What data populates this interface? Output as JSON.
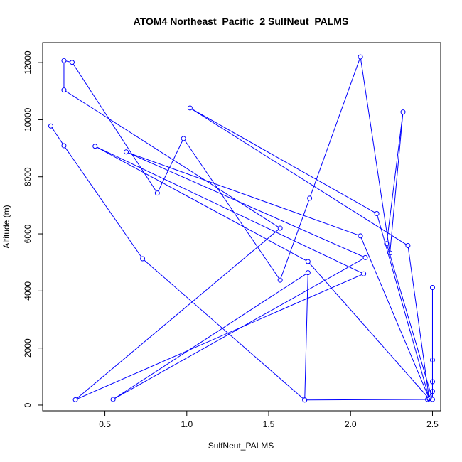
{
  "chart_data": {
    "type": "scatter",
    "title": "ATOM4 Northeast_Pacific_2 SulfNeut_PALMS",
    "xlabel": "SulfNeut_PALMS",
    "ylabel": "Altitude (m)",
    "xlim": [
      0.12,
      2.55
    ],
    "ylim": [
      -200,
      12700
    ],
    "x_ticks": [
      0.5,
      1.0,
      1.5,
      2.0,
      2.5
    ],
    "x_tick_labels": [
      "0.5",
      "1.0",
      "1.5",
      "2.0",
      "2.5"
    ],
    "y_ticks": [
      0,
      2000,
      4000,
      6000,
      8000,
      10000,
      12000
    ],
    "y_tick_labels": [
      "0",
      "2000",
      "4000",
      "6000",
      "8000",
      "10000",
      "12000"
    ],
    "grid": false,
    "legend": "none",
    "series_color": "#0000ff",
    "connected": true,
    "marker": "open-circle",
    "points": [
      [
        0.17,
        9780
      ],
      [
        0.25,
        9090
      ],
      [
        0.73,
        5130
      ],
      [
        1.72,
        180
      ],
      [
        2.47,
        200
      ],
      [
        2.5,
        480
      ],
      [
        2.5,
        820
      ],
      [
        2.5,
        1580
      ],
      [
        2.5,
        4120
      ],
      [
        2.5,
        200
      ],
      [
        2.22,
        5660
      ],
      [
        2.32,
        10270
      ],
      [
        2.24,
        5330
      ],
      [
        2.06,
        12200
      ],
      [
        1.75,
        7250
      ],
      [
        1.57,
        4380
      ],
      [
        0.98,
        9340
      ],
      [
        0.82,
        7430
      ],
      [
        0.3,
        12010
      ],
      [
        0.25,
        12070
      ],
      [
        0.25,
        11040
      ],
      [
        1.57,
        6200
      ],
      [
        0.32,
        190
      ],
      [
        2.08,
        4600
      ],
      [
        0.44,
        9070
      ],
      [
        1.74,
        5030
      ],
      [
        2.48,
        220
      ],
      [
        2.35,
        5590
      ],
      [
        1.02,
        10410
      ],
      [
        2.16,
        6710
      ],
      [
        2.48,
        230
      ],
      [
        2.06,
        5930
      ],
      [
        0.63,
        8870
      ],
      [
        2.09,
        5170
      ],
      [
        0.55,
        200
      ],
      [
        1.74,
        4640
      ],
      [
        1.72,
        180
      ]
    ]
  }
}
